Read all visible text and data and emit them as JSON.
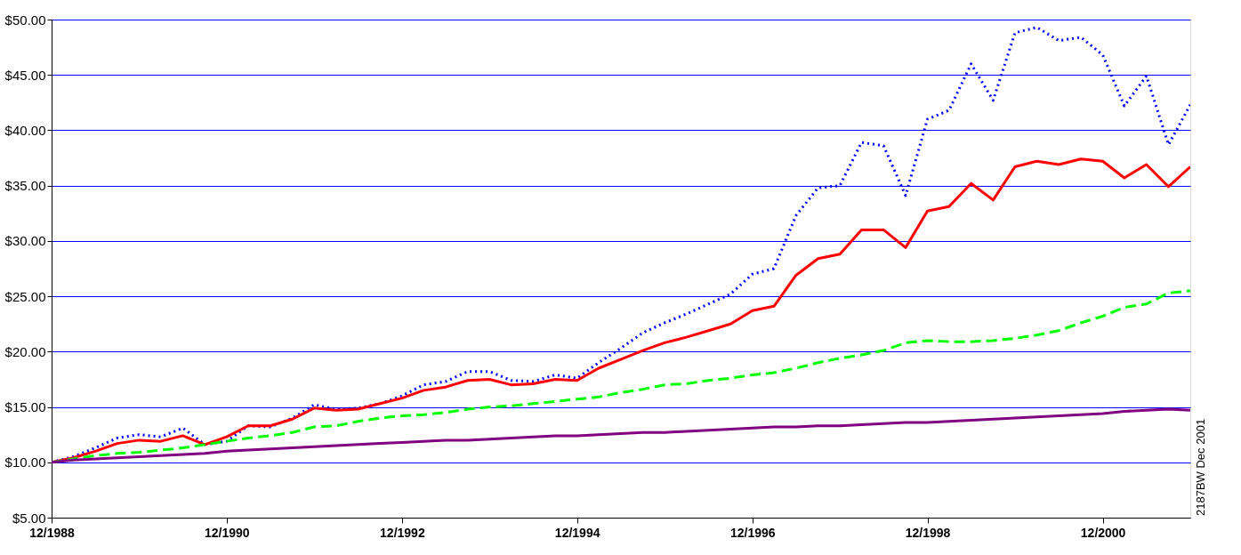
{
  "chart_data": {
    "type": "line",
    "x": [
      "1988-12",
      "1989-03",
      "1989-06",
      "1989-09",
      "1989-12",
      "1990-03",
      "1990-06",
      "1990-09",
      "1990-12",
      "1991-03",
      "1991-06",
      "1991-09",
      "1991-12",
      "1992-03",
      "1992-06",
      "1992-09",
      "1992-12",
      "1993-03",
      "1993-06",
      "1993-09",
      "1993-12",
      "1994-03",
      "1994-06",
      "1994-09",
      "1994-12",
      "1995-03",
      "1995-06",
      "1995-09",
      "1995-12",
      "1996-03",
      "1996-06",
      "1996-09",
      "1996-12",
      "1997-03",
      "1997-06",
      "1997-09",
      "1997-12",
      "1998-03",
      "1998-06",
      "1998-09",
      "1998-12",
      "1999-03",
      "1999-06",
      "1999-09",
      "1999-12",
      "2000-03",
      "2000-06",
      "2000-09",
      "2000-12",
      "2001-03",
      "2001-06",
      "2001-09",
      "2001-12"
    ],
    "series": [
      {
        "color": "#0000ff",
        "line_style": "dotted",
        "values": [
          10.0,
          10.5,
          11.3,
          12.2,
          12.5,
          12.3,
          13.1,
          11.6,
          11.9,
          13.3,
          13.2,
          14.0,
          15.2,
          14.8,
          14.9,
          15.3,
          16.0,
          17.0,
          17.3,
          18.2,
          18.2,
          17.4,
          17.3,
          17.9,
          17.6,
          19.0,
          20.3,
          21.7,
          22.6,
          23.4,
          24.3,
          25.2,
          27.0,
          27.5,
          32.3,
          34.8,
          35.0,
          38.9,
          38.6,
          34.1,
          41.0,
          41.8,
          46.0,
          42.7,
          48.8,
          49.3,
          48.1,
          48.4,
          46.8,
          42.2,
          44.9,
          38.7,
          42.3
        ]
      },
      {
        "color": "#ff0000",
        "line_style": "solid",
        "values": [
          10.0,
          10.4,
          11.0,
          11.7,
          12.0,
          11.9,
          12.4,
          11.6,
          12.3,
          13.3,
          13.3,
          13.9,
          14.9,
          14.7,
          14.8,
          15.3,
          15.8,
          16.5,
          16.8,
          17.4,
          17.5,
          17.0,
          17.1,
          17.5,
          17.4,
          18.5,
          19.3,
          20.1,
          20.8,
          21.3,
          21.9,
          22.5,
          23.7,
          24.1,
          26.9,
          28.4,
          28.8,
          31.0,
          31.0,
          29.4,
          32.7,
          33.1,
          35.2,
          33.7,
          36.7,
          37.2,
          36.9,
          37.4,
          37.2,
          35.7,
          36.9,
          34.9,
          36.7
        ]
      },
      {
        "color": "#00ff00",
        "line_style": "dashed",
        "values": [
          10.0,
          10.3,
          10.6,
          10.8,
          10.9,
          11.1,
          11.3,
          11.6,
          11.9,
          12.2,
          12.4,
          12.7,
          13.2,
          13.3,
          13.7,
          14.0,
          14.2,
          14.3,
          14.5,
          14.8,
          15.0,
          15.1,
          15.3,
          15.5,
          15.7,
          15.9,
          16.3,
          16.6,
          17.0,
          17.1,
          17.4,
          17.6,
          17.9,
          18.1,
          18.5,
          19.0,
          19.4,
          19.7,
          20.1,
          20.8,
          21.0,
          20.9,
          20.9,
          21.0,
          21.2,
          21.5,
          21.9,
          22.6,
          23.2,
          24.0,
          24.3,
          25.3,
          25.5
        ]
      },
      {
        "color": "#800080",
        "line_style": "solid",
        "values": [
          10.0,
          10.2,
          10.3,
          10.4,
          10.5,
          10.6,
          10.7,
          10.8,
          11.0,
          11.1,
          11.2,
          11.3,
          11.4,
          11.5,
          11.6,
          11.7,
          11.8,
          11.9,
          12.0,
          12.0,
          12.1,
          12.2,
          12.3,
          12.4,
          12.4,
          12.5,
          12.6,
          12.7,
          12.7,
          12.8,
          12.9,
          13.0,
          13.1,
          13.2,
          13.2,
          13.3,
          13.3,
          13.4,
          13.5,
          13.6,
          13.6,
          13.7,
          13.8,
          13.9,
          14.0,
          14.1,
          14.2,
          14.3,
          14.4,
          14.6,
          14.7,
          14.8,
          14.7
        ]
      }
    ],
    "xlim": [
      "1988-12",
      "2001-12"
    ],
    "xticks": [
      {
        "value": "1988-12",
        "label": "12/1988"
      },
      {
        "value": "1990-12",
        "label": "12/1990"
      },
      {
        "value": "1992-12",
        "label": "12/1992"
      },
      {
        "value": "1994-12",
        "label": "12/1994"
      },
      {
        "value": "1996-12",
        "label": "12/1996"
      },
      {
        "value": "1998-12",
        "label": "12/1998"
      },
      {
        "value": "2000-12",
        "label": "12/2000"
      }
    ],
    "ylim": [
      5,
      50
    ],
    "yticks": [
      {
        "value": 5,
        "label": "$5.00"
      },
      {
        "value": 10,
        "label": "$10.00"
      },
      {
        "value": 15,
        "label": "$15.00"
      },
      {
        "value": 20,
        "label": "$20.00"
      },
      {
        "value": 25,
        "label": "$25.00"
      },
      {
        "value": 30,
        "label": "$30.00"
      },
      {
        "value": 35,
        "label": "$35.00"
      },
      {
        "value": 40,
        "label": "$40.00"
      },
      {
        "value": 45,
        "label": "$45.00"
      },
      {
        "value": 50,
        "label": "$50.00"
      }
    ],
    "grid": "y",
    "annotations": [
      "2187BW Dec 2001"
    ]
  }
}
